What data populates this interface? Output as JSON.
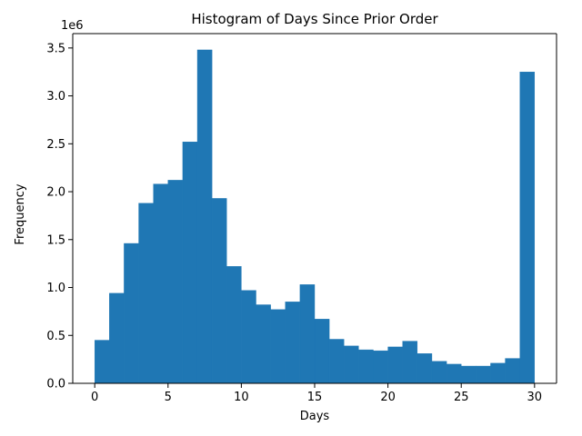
{
  "chart_data": {
    "type": "bar",
    "title": "Histogram of Days Since Prior Order",
    "xlabel": "Days",
    "ylabel": "Frequency",
    "y_offset_label": "1e6",
    "xlim": [
      -1.5,
      31.5
    ],
    "ylim": [
      0,
      3.65
    ],
    "xticks": [
      0,
      5,
      10,
      15,
      20,
      25,
      30
    ],
    "yticks": [
      0.0,
      0.5,
      1.0,
      1.5,
      2.0,
      2.5,
      3.0,
      3.5
    ],
    "bin_edges": [
      0,
      1,
      2,
      3,
      4,
      5,
      6,
      7,
      8,
      9,
      10,
      11,
      12,
      13,
      14,
      15,
      16,
      17,
      18,
      19,
      20,
      21,
      22,
      23,
      24,
      25,
      26,
      27,
      28,
      29,
      30
    ],
    "values": [
      0.45,
      0.94,
      1.46,
      1.88,
      2.08,
      2.12,
      2.52,
      3.48,
      1.93,
      1.22,
      0.97,
      0.82,
      0.77,
      0.85,
      1.03,
      0.67,
      0.46,
      0.39,
      0.35,
      0.34,
      0.38,
      0.44,
      0.31,
      0.23,
      0.2,
      0.18,
      0.18,
      0.21,
      0.26,
      3.25
    ],
    "bar_color": "#1f77b4",
    "grid": false,
    "legend": "none"
  }
}
